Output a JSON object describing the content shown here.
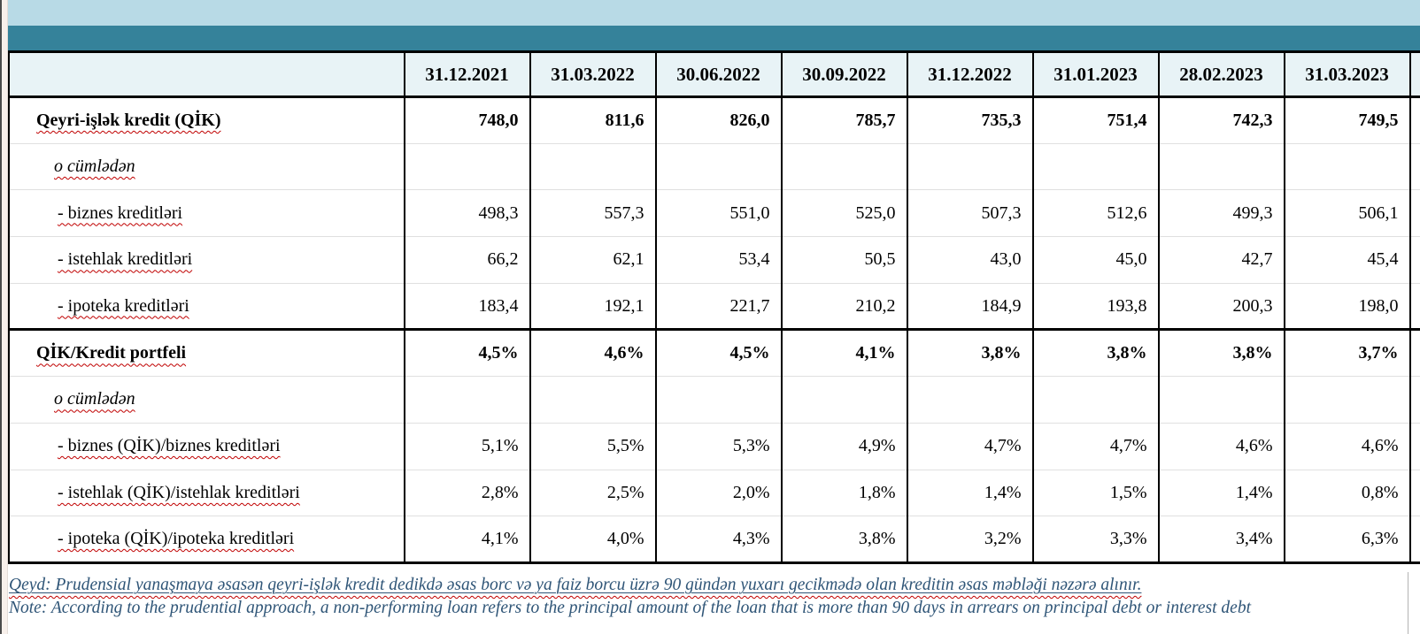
{
  "colors": {
    "top_band": "#B8DAE6",
    "teal_band": "#35829A",
    "header_row_bg": "#E8F3F6",
    "margin_strip": "#F8F0EB",
    "note_text": "#2F5577",
    "squiggle": "#C00000",
    "grid_light": "#E0E0E0"
  },
  "table": {
    "column_headers": [
      "31.12.2021",
      "31.03.2022",
      "30.06.2022",
      "30.09.2022",
      "31.12.2022",
      "31.01.2023",
      "28.02.2023",
      "31.03.2023"
    ],
    "rows": [
      {
        "label": "Qeyri-işlək kredit (QİK)",
        "bold": true,
        "indent": "main",
        "values": [
          "748,0",
          "811,6",
          "826,0",
          "785,7",
          "735,3",
          "751,4",
          "742,3",
          "749,5"
        ]
      },
      {
        "label": "o cümlədən",
        "italic": true,
        "indent": "sub",
        "values": [
          "",
          "",
          "",
          "",
          "",
          "",
          "",
          ""
        ]
      },
      {
        "label": "- biznes kreditləri",
        "indent": "dash",
        "values": [
          "498,3",
          "557,3",
          "551,0",
          "525,0",
          "507,3",
          "512,6",
          "499,3",
          "506,1"
        ]
      },
      {
        "label": "- istehlak kreditləri",
        "indent": "dash",
        "values": [
          "66,2",
          "62,1",
          "53,4",
          "50,5",
          "43,0",
          "45,0",
          "42,7",
          "45,4"
        ]
      },
      {
        "label": "- ipoteka kreditləri",
        "indent": "dash",
        "values": [
          "183,4",
          "192,1",
          "221,7",
          "210,2",
          "184,9",
          "193,8",
          "200,3",
          "198,0"
        ]
      },
      {
        "label": "QİK/Kredit portfeli",
        "bold": true,
        "section_start": true,
        "indent": "main",
        "values": [
          "4,5%",
          "4,6%",
          "4,5%",
          "4,1%",
          "3,8%",
          "3,8%",
          "3,8%",
          "3,7%"
        ]
      },
      {
        "label": "o cümlədən",
        "italic": true,
        "indent": "sub",
        "values": [
          "",
          "",
          "",
          "",
          "",
          "",
          "",
          ""
        ]
      },
      {
        "label": "- biznes (QİK)/biznes kreditləri",
        "indent": "dash",
        "values": [
          "5,1%",
          "5,5%",
          "5,3%",
          "4,9%",
          "4,7%",
          "4,7%",
          "4,6%",
          "4,6%"
        ]
      },
      {
        "label": "- istehlak (QİK)/istehlak kreditləri",
        "indent": "dash",
        "values": [
          "2,8%",
          "2,5%",
          "2,0%",
          "1,8%",
          "1,4%",
          "1,5%",
          "1,4%",
          "0,8%"
        ]
      },
      {
        "label": "- ipoteka (QİK)/ipoteka kreditləri",
        "indent": "dash",
        "values": [
          "4,1%",
          "4,0%",
          "4,3%",
          "3,8%",
          "3,2%",
          "3,3%",
          "3,4%",
          "6,3%"
        ]
      }
    ]
  },
  "notes": {
    "azerbaijani": "Qeyd: Prudensial yanaşmaya əsasən qeyri-işlək kredit dedikdə əsas borc və ya faiz borcu üzrə 90 gündən yuxarı gecikmədə olan kreditin əsas məbləği nəzərə alınır.",
    "english": "Note: According to the prudential approach, a non-performing loan refers to the principal amount of the loan that is more than 90 days in arrears on principal debt or interest debt"
  }
}
